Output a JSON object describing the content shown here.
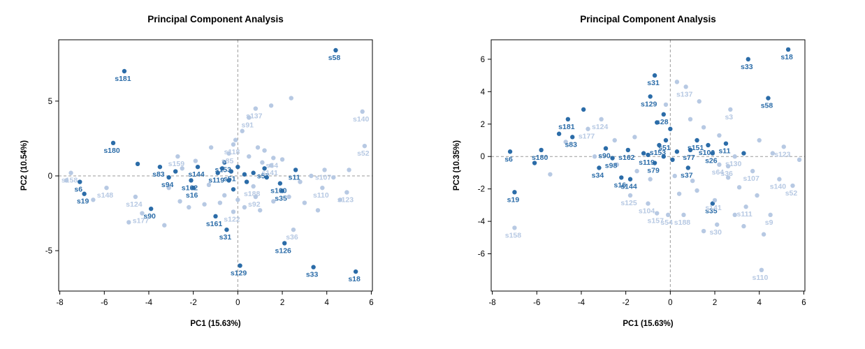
{
  "page": {
    "background": "#ffffff"
  },
  "colors": {
    "dark": "#2b6ca8",
    "light": "#b7c9e3",
    "grid": "#9a9a9a",
    "axis": "#000000",
    "title": "#000000"
  },
  "chart_data": [
    {
      "type": "scatter",
      "title": "Principal Component Analysis",
      "xlabel": "PC1 (15.63%)",
      "ylabel": "PC2 (10.54%)",
      "xlim": [
        -8.05,
        6.05
      ],
      "ylim": [
        -7.7,
        9.1
      ],
      "xticks": [
        -8,
        -6,
        -4,
        -2,
        0,
        2,
        4,
        6
      ],
      "yticks": [
        -5,
        0,
        5
      ],
      "grid": "dashed crosshair at x=0 and y=0",
      "legend": "none",
      "points": [
        {
          "label": "s58",
          "x": 4.4,
          "y": 8.4,
          "group": "dark"
        },
        {
          "label": "s181",
          "x": -5.1,
          "y": 7.0,
          "group": "dark"
        },
        {
          "label": "s180",
          "x": -5.6,
          "y": 2.2,
          "group": "dark"
        },
        {
          "label": "s83",
          "x": -3.5,
          "y": 0.6,
          "group": "dark"
        },
        {
          "label": "s94",
          "x": -3.1,
          "y": -0.1,
          "group": "dark"
        },
        {
          "label": "s6",
          "x": -7.1,
          "y": -0.4,
          "group": "dark"
        },
        {
          "label": "s19",
          "x": -6.9,
          "y": -1.2,
          "group": "dark"
        },
        {
          "label": "s90",
          "x": -3.9,
          "y": -2.2,
          "group": "dark"
        },
        {
          "label": "s144",
          "x": -1.8,
          "y": 0.6,
          "group": "dark"
        },
        {
          "label": "s162",
          "x": -2.1,
          "y": -0.3,
          "group": "dark"
        },
        {
          "label": "s16",
          "x": -2.0,
          "y": -0.8,
          "group": "dark"
        },
        {
          "label": "s161",
          "x": -1.0,
          "y": -2.7,
          "group": "dark"
        },
        {
          "label": "s31",
          "x": -0.5,
          "y": -3.6,
          "group": "dark"
        },
        {
          "label": "s129",
          "x": 0.1,
          "y": -6.0,
          "group": "dark"
        },
        {
          "label": "s126",
          "x": 2.1,
          "y": -4.5,
          "group": "dark"
        },
        {
          "label": "s33",
          "x": 3.4,
          "y": -6.1,
          "group": "dark"
        },
        {
          "label": "s18",
          "x": 5.3,
          "y": -6.4,
          "group": "dark"
        },
        {
          "label": "s35",
          "x": 2.0,
          "y": -1.0,
          "group": "dark"
        },
        {
          "label": "s100",
          "x": 1.9,
          "y": -0.5,
          "group": "dark"
        },
        {
          "label": "s11",
          "x": 2.6,
          "y": 0.4,
          "group": "dark"
        },
        {
          "label": "s57",
          "x": 1.2,
          "y": 0.5,
          "group": "dark"
        },
        {
          "label": "s153",
          "x": -0.6,
          "y": 0.9,
          "group": "dark"
        },
        {
          "label": "s119",
          "x": -0.9,
          "y": 0.2,
          "group": "dark"
        },
        {
          "label": "s51",
          "x": -0.3,
          "y": 0.3,
          "group": "dark"
        },
        {
          "label": "s158",
          "x": -7.5,
          "y": 0.2,
          "group": "light"
        },
        {
          "label": "s148",
          "x": -5.9,
          "y": -0.8,
          "group": "light"
        },
        {
          "label": "s124",
          "x": -4.6,
          "y": -1.4,
          "group": "light"
        },
        {
          "label": "s177",
          "x": -4.3,
          "y": -2.5,
          "group": "light"
        },
        {
          "label": "s159",
          "x": -2.7,
          "y": 1.3,
          "group": "light"
        },
        {
          "label": "s118",
          "x": -0.2,
          "y": 2.1,
          "group": "light"
        },
        {
          "label": "s85",
          "x": -0.4,
          "y": 1.5,
          "group": "light"
        },
        {
          "label": "s91",
          "x": 0.5,
          "y": 3.9,
          "group": "light"
        },
        {
          "label": "s137",
          "x": 0.8,
          "y": 4.5,
          "group": "light"
        },
        {
          "label": "s140",
          "x": 5.6,
          "y": 4.3,
          "group": "light"
        },
        {
          "label": "s52",
          "x": 5.7,
          "y": 2.0,
          "group": "light"
        },
        {
          "label": "s107",
          "x": 3.9,
          "y": 0.4,
          "group": "light"
        },
        {
          "label": "s110",
          "x": 3.8,
          "y": -0.8,
          "group": "light"
        },
        {
          "label": "s123",
          "x": 4.9,
          "y": -1.1,
          "group": "light"
        },
        {
          "label": "s64",
          "x": 1.6,
          "y": 1.2,
          "group": "light"
        },
        {
          "label": "s141",
          "x": 1.5,
          "y": 0.7,
          "group": "light"
        },
        {
          "label": "s188",
          "x": 0.7,
          "y": -0.7,
          "group": "light"
        },
        {
          "label": "s92",
          "x": 0.8,
          "y": -1.4,
          "group": "light"
        },
        {
          "label": "s122",
          "x": -0.2,
          "y": -2.4,
          "group": "light"
        },
        {
          "label": "s36",
          "x": 2.5,
          "y": -3.6,
          "group": "light"
        }
      ],
      "unlabeled": [
        [
          -7.7,
          -0.3,
          "light"
        ],
        [
          -6.5,
          -1.6,
          "light"
        ],
        [
          -4.9,
          -3.1,
          "light"
        ],
        [
          -3.3,
          -3.3,
          "light"
        ],
        [
          -2.6,
          -1.7,
          "light"
        ],
        [
          -2.2,
          -2.1,
          "light"
        ],
        [
          -1.5,
          -1.9,
          "light"
        ],
        [
          -0.8,
          -1.8,
          "light"
        ],
        [
          0.3,
          -2.1,
          "light"
        ],
        [
          1.0,
          -2.3,
          "light"
        ],
        [
          1.6,
          -1.7,
          "light"
        ],
        [
          2.3,
          -1.4,
          "light"
        ],
        [
          3.0,
          -1.8,
          "light"
        ],
        [
          3.6,
          -2.3,
          "light"
        ],
        [
          2.8,
          -0.4,
          "light"
        ],
        [
          3.3,
          0.0,
          "light"
        ],
        [
          -1.2,
          1.9,
          "light"
        ],
        [
          -1.9,
          1.0,
          "light"
        ],
        [
          -2.5,
          0.5,
          "light"
        ],
        [
          1.5,
          4.7,
          "light"
        ],
        [
          2.4,
          5.2,
          "light"
        ],
        [
          0.2,
          3.0,
          "light"
        ],
        [
          -0.1,
          2.4,
          "light"
        ],
        [
          1.2,
          1.7,
          "light"
        ],
        [
          2.0,
          1.1,
          "light"
        ],
        [
          4.3,
          -0.1,
          "light"
        ],
        [
          5.0,
          0.4,
          "light"
        ],
        [
          -3.1,
          -0.8,
          "light"
        ],
        [
          0.5,
          1.3,
          "light"
        ],
        [
          -0.6,
          -1.3,
          "light"
        ],
        [
          0.0,
          -1.6,
          "light"
        ],
        [
          -1.3,
          -0.6,
          "light"
        ],
        [
          1.1,
          0.9,
          "light"
        ],
        [
          0.9,
          1.9,
          "light"
        ],
        [
          4.6,
          -1.6,
          "light"
        ],
        [
          -4.5,
          0.8,
          "dark"
        ],
        [
          -2.8,
          0.3,
          "dark"
        ],
        [
          -0.2,
          -0.9,
          "dark"
        ],
        [
          0.4,
          -0.4,
          "dark"
        ],
        [
          1.3,
          -0.1,
          "dark"
        ],
        [
          -0.7,
          0.5,
          "dark"
        ],
        [
          0.0,
          0.6,
          "dark"
        ],
        [
          0.3,
          0.1,
          "dark"
        ],
        [
          -0.4,
          -0.3,
          "dark"
        ],
        [
          0.7,
          0.2,
          "dark"
        ]
      ]
    },
    {
      "type": "scatter",
      "title": "Principal Component Analysis",
      "xlabel": "PC1 (15.63%)",
      "ylabel": "PC3 (10.35%)",
      "xlim": [
        -8.05,
        6.05
      ],
      "ylim": [
        -8.3,
        7.2
      ],
      "xticks": [
        -8,
        -6,
        -4,
        -2,
        0,
        2,
        4,
        6
      ],
      "yticks": [
        -6,
        -4,
        -2,
        0,
        2,
        4,
        6
      ],
      "grid": "dashed crosshair at x=0 and y=0",
      "legend": "none",
      "points": [
        {
          "label": "s18",
          "x": 5.3,
          "y": 6.6,
          "group": "dark"
        },
        {
          "label": "s33",
          "x": 3.5,
          "y": 6.0,
          "group": "dark"
        },
        {
          "label": "s58",
          "x": 4.4,
          "y": 3.6,
          "group": "dark"
        },
        {
          "label": "s31",
          "x": -0.7,
          "y": 5.0,
          "group": "dark"
        },
        {
          "label": "s129",
          "x": -0.9,
          "y": 3.7,
          "group": "dark"
        },
        {
          "label": "s181",
          "x": -4.6,
          "y": 2.3,
          "group": "dark"
        },
        {
          "label": "s83",
          "x": -4.4,
          "y": 1.2,
          "group": "dark"
        },
        {
          "label": "s180",
          "x": -5.8,
          "y": 0.4,
          "group": "dark"
        },
        {
          "label": "s6",
          "x": -7.2,
          "y": 0.3,
          "group": "dark"
        },
        {
          "label": "s19",
          "x": -7.0,
          "y": -2.2,
          "group": "dark"
        },
        {
          "label": "s90",
          "x": -2.9,
          "y": 0.5,
          "group": "dark"
        },
        {
          "label": "s98",
          "x": -2.6,
          "y": -0.1,
          "group": "dark"
        },
        {
          "label": "s34",
          "x": -3.2,
          "y": -0.7,
          "group": "dark"
        },
        {
          "label": "s16",
          "x": -2.2,
          "y": -1.3,
          "group": "dark"
        },
        {
          "label": "s144",
          "x": -1.8,
          "y": -1.4,
          "group": "dark"
        },
        {
          "label": "s151",
          "x": 1.2,
          "y": 1.0,
          "group": "dark"
        },
        {
          "label": "s77",
          "x": 0.9,
          "y": 0.4,
          "group": "dark"
        },
        {
          "label": "s100",
          "x": 1.7,
          "y": 0.7,
          "group": "dark"
        },
        {
          "label": "s11",
          "x": 2.5,
          "y": 0.8,
          "group": "dark"
        },
        {
          "label": "s26",
          "x": 1.9,
          "y": 0.2,
          "group": "dark"
        },
        {
          "label": "s35",
          "x": 1.9,
          "y": -2.9,
          "group": "dark"
        },
        {
          "label": "s28",
          "x": -0.3,
          "y": 2.6,
          "group": "dark"
        },
        {
          "label": "s162",
          "x": -1.9,
          "y": 0.4,
          "group": "dark"
        },
        {
          "label": "s79",
          "x": -0.7,
          "y": -0.4,
          "group": "dark"
        },
        {
          "label": "s37",
          "x": 0.8,
          "y": -0.7,
          "group": "dark"
        },
        {
          "label": "s51",
          "x": -0.2,
          "y": 1.0,
          "group": "dark"
        },
        {
          "label": "s153",
          "x": -0.5,
          "y": 0.7,
          "group": "dark"
        },
        {
          "label": "s119",
          "x": -1.0,
          "y": 0.1,
          "group": "dark"
        },
        {
          "label": "s137",
          "x": 0.7,
          "y": 4.3,
          "group": "light"
        },
        {
          "label": "s3",
          "x": 2.7,
          "y": 2.9,
          "group": "light"
        },
        {
          "label": "s124",
          "x": -3.1,
          "y": 2.3,
          "group": "light"
        },
        {
          "label": "s177",
          "x": -3.7,
          "y": 1.7,
          "group": "light"
        },
        {
          "label": "s123",
          "x": 5.1,
          "y": 0.6,
          "group": "light"
        },
        {
          "label": "s130",
          "x": 2.9,
          "y": 0.0,
          "group": "light"
        },
        {
          "label": "s107",
          "x": 3.7,
          "y": -0.9,
          "group": "light"
        },
        {
          "label": "s140",
          "x": 4.9,
          "y": -1.4,
          "group": "light"
        },
        {
          "label": "s52",
          "x": 5.5,
          "y": -1.8,
          "group": "light"
        },
        {
          "label": "s111",
          "x": 3.4,
          "y": -3.1,
          "group": "light"
        },
        {
          "label": "s9",
          "x": 4.5,
          "y": -3.6,
          "group": "light"
        },
        {
          "label": "s141",
          "x": 2.0,
          "y": -2.7,
          "group": "light"
        },
        {
          "label": "s104",
          "x": -1.0,
          "y": -2.9,
          "group": "light"
        },
        {
          "label": "s125",
          "x": -1.8,
          "y": -2.4,
          "group": "light"
        },
        {
          "label": "s157",
          "x": -0.6,
          "y": -3.5,
          "group": "light"
        },
        {
          "label": "s54",
          "x": -0.1,
          "y": -3.6,
          "group": "light"
        },
        {
          "label": "s188",
          "x": 0.6,
          "y": -3.6,
          "group": "light"
        },
        {
          "label": "s30",
          "x": 2.1,
          "y": -4.2,
          "group": "light"
        },
        {
          "label": "s158",
          "x": -7.0,
          "y": -4.4,
          "group": "light"
        },
        {
          "label": "s110",
          "x": 4.1,
          "y": -7.0,
          "group": "light"
        },
        {
          "label": "s64",
          "x": 2.2,
          "y": -0.5,
          "group": "light"
        },
        {
          "label": "s36",
          "x": 2.6,
          "y": -0.6,
          "group": "light"
        }
      ],
      "unlabeled": [
        [
          -3.9,
          2.9,
          "dark"
        ],
        [
          -0.6,
          2.1,
          "dark"
        ],
        [
          0.0,
          1.7,
          "dark"
        ],
        [
          -1.2,
          0.2,
          "dark"
        ],
        [
          0.3,
          0.3,
          "dark"
        ],
        [
          -0.3,
          0.0,
          "dark"
        ],
        [
          0.1,
          -0.2,
          "dark"
        ],
        [
          -5.0,
          1.4,
          "dark"
        ],
        [
          -6.1,
          -0.4,
          "dark"
        ],
        [
          3.3,
          0.2,
          "dark"
        ],
        [
          -4.7,
          0.9,
          "light"
        ],
        [
          -3.4,
          0.0,
          "light"
        ],
        [
          -2.4,
          -0.5,
          "light"
        ],
        [
          -1.5,
          -0.9,
          "light"
        ],
        [
          -0.9,
          -1.4,
          "light"
        ],
        [
          0.2,
          -1.2,
          "light"
        ],
        [
          1.0,
          -1.5,
          "light"
        ],
        [
          2.6,
          -1.3,
          "light"
        ],
        [
          3.1,
          -1.9,
          "light"
        ],
        [
          3.9,
          -2.4,
          "light"
        ],
        [
          -0.2,
          3.2,
          "light"
        ],
        [
          0.9,
          2.3,
          "light"
        ],
        [
          1.5,
          1.8,
          "light"
        ],
        [
          2.2,
          1.3,
          "light"
        ],
        [
          -1.6,
          1.2,
          "light"
        ],
        [
          -2.5,
          1.0,
          "light"
        ],
        [
          4.0,
          1.0,
          "light"
        ],
        [
          4.6,
          0.2,
          "light"
        ],
        [
          5.8,
          -0.2,
          "light"
        ],
        [
          0.4,
          -2.3,
          "light"
        ],
        [
          1.2,
          -2.1,
          "light"
        ],
        [
          2.9,
          -3.6,
          "light"
        ],
        [
          3.3,
          -4.3,
          "light"
        ],
        [
          1.5,
          -4.6,
          "light"
        ],
        [
          4.2,
          -4.8,
          "light"
        ],
        [
          -5.4,
          -1.1,
          "light"
        ],
        [
          1.3,
          3.4,
          "light"
        ],
        [
          0.3,
          4.6,
          "light"
        ]
      ]
    }
  ]
}
